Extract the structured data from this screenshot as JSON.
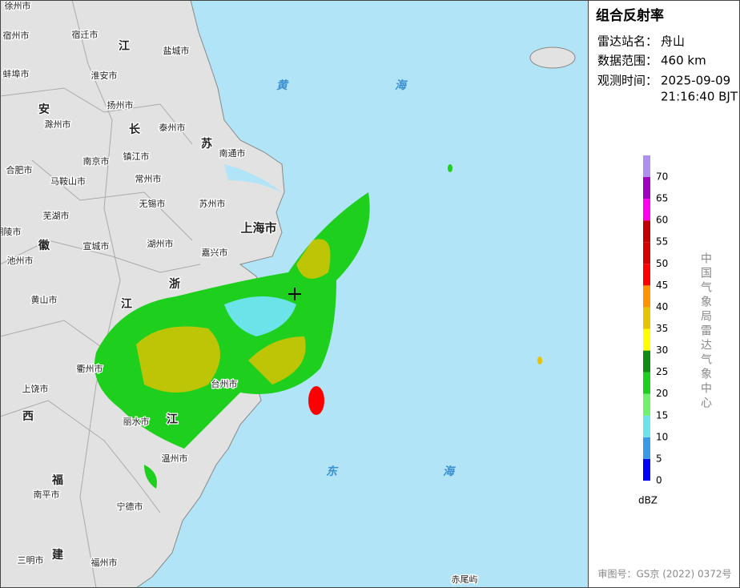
{
  "panel": {
    "title": "组合反射率",
    "rows": [
      {
        "label": "雷达站名：",
        "value": "舟山"
      },
      {
        "label": "数据范围：",
        "value": "460 km"
      },
      {
        "label": "观测时间：",
        "value": "2025-09-09",
        "value2": "21:16:40 BJT"
      }
    ],
    "legend_unit": "dBZ",
    "source": "中国气象局雷达气象中心",
    "approval": "审图号：GS京 (2022) 0372号"
  },
  "legend": {
    "levels": [
      {
        "value": 0,
        "color": "#0000f6"
      },
      {
        "value": 5,
        "color": "#3c9be8"
      },
      {
        "value": 10,
        "color": "#6be3e8"
      },
      {
        "value": 15,
        "color": "#6ef26e"
      },
      {
        "value": 20,
        "color": "#1ecf1e"
      },
      {
        "value": 25,
        "color": "#0f8c0f"
      },
      {
        "value": 30,
        "color": "#ffff00"
      },
      {
        "value": 35,
        "color": "#e6c200"
      },
      {
        "value": 40,
        "color": "#ff9200"
      },
      {
        "value": 45,
        "color": "#ff0000"
      },
      {
        "value": 50,
        "color": "#d40000"
      },
      {
        "value": 55,
        "color": "#c00000"
      },
      {
        "value": 60,
        "color": "#ff00f0"
      },
      {
        "value": 65,
        "color": "#a000c0"
      },
      {
        "value": 70,
        "color": "#ad90f0"
      }
    ]
  },
  "map": {
    "labels": [
      "徐州市",
      "宿州市",
      "宿迁市",
      "江",
      "盐城市",
      "蚌埠市",
      "淮安市",
      "安",
      "扬州市",
      "泰州市",
      "滁州市",
      "长",
      "苏",
      "南通市",
      "合肥市",
      "南京市",
      "镇江市",
      "马鞍山市",
      "常州市",
      "芜湖市",
      "无锡市",
      "苏州市",
      "上海市",
      "铜陵市",
      "宣城市",
      "湖州市",
      "池州市",
      "徽",
      "嘉兴市",
      "浙",
      "黄山市",
      "江",
      "衢州市",
      "台州市",
      "上饶市",
      "西",
      "丽水市",
      "江",
      "温州市",
      "福",
      "南平市",
      "宁德市",
      "三明市",
      "建",
      "福州市",
      "黄",
      "海",
      "东",
      "海",
      "赤尾屿"
    ]
  }
}
